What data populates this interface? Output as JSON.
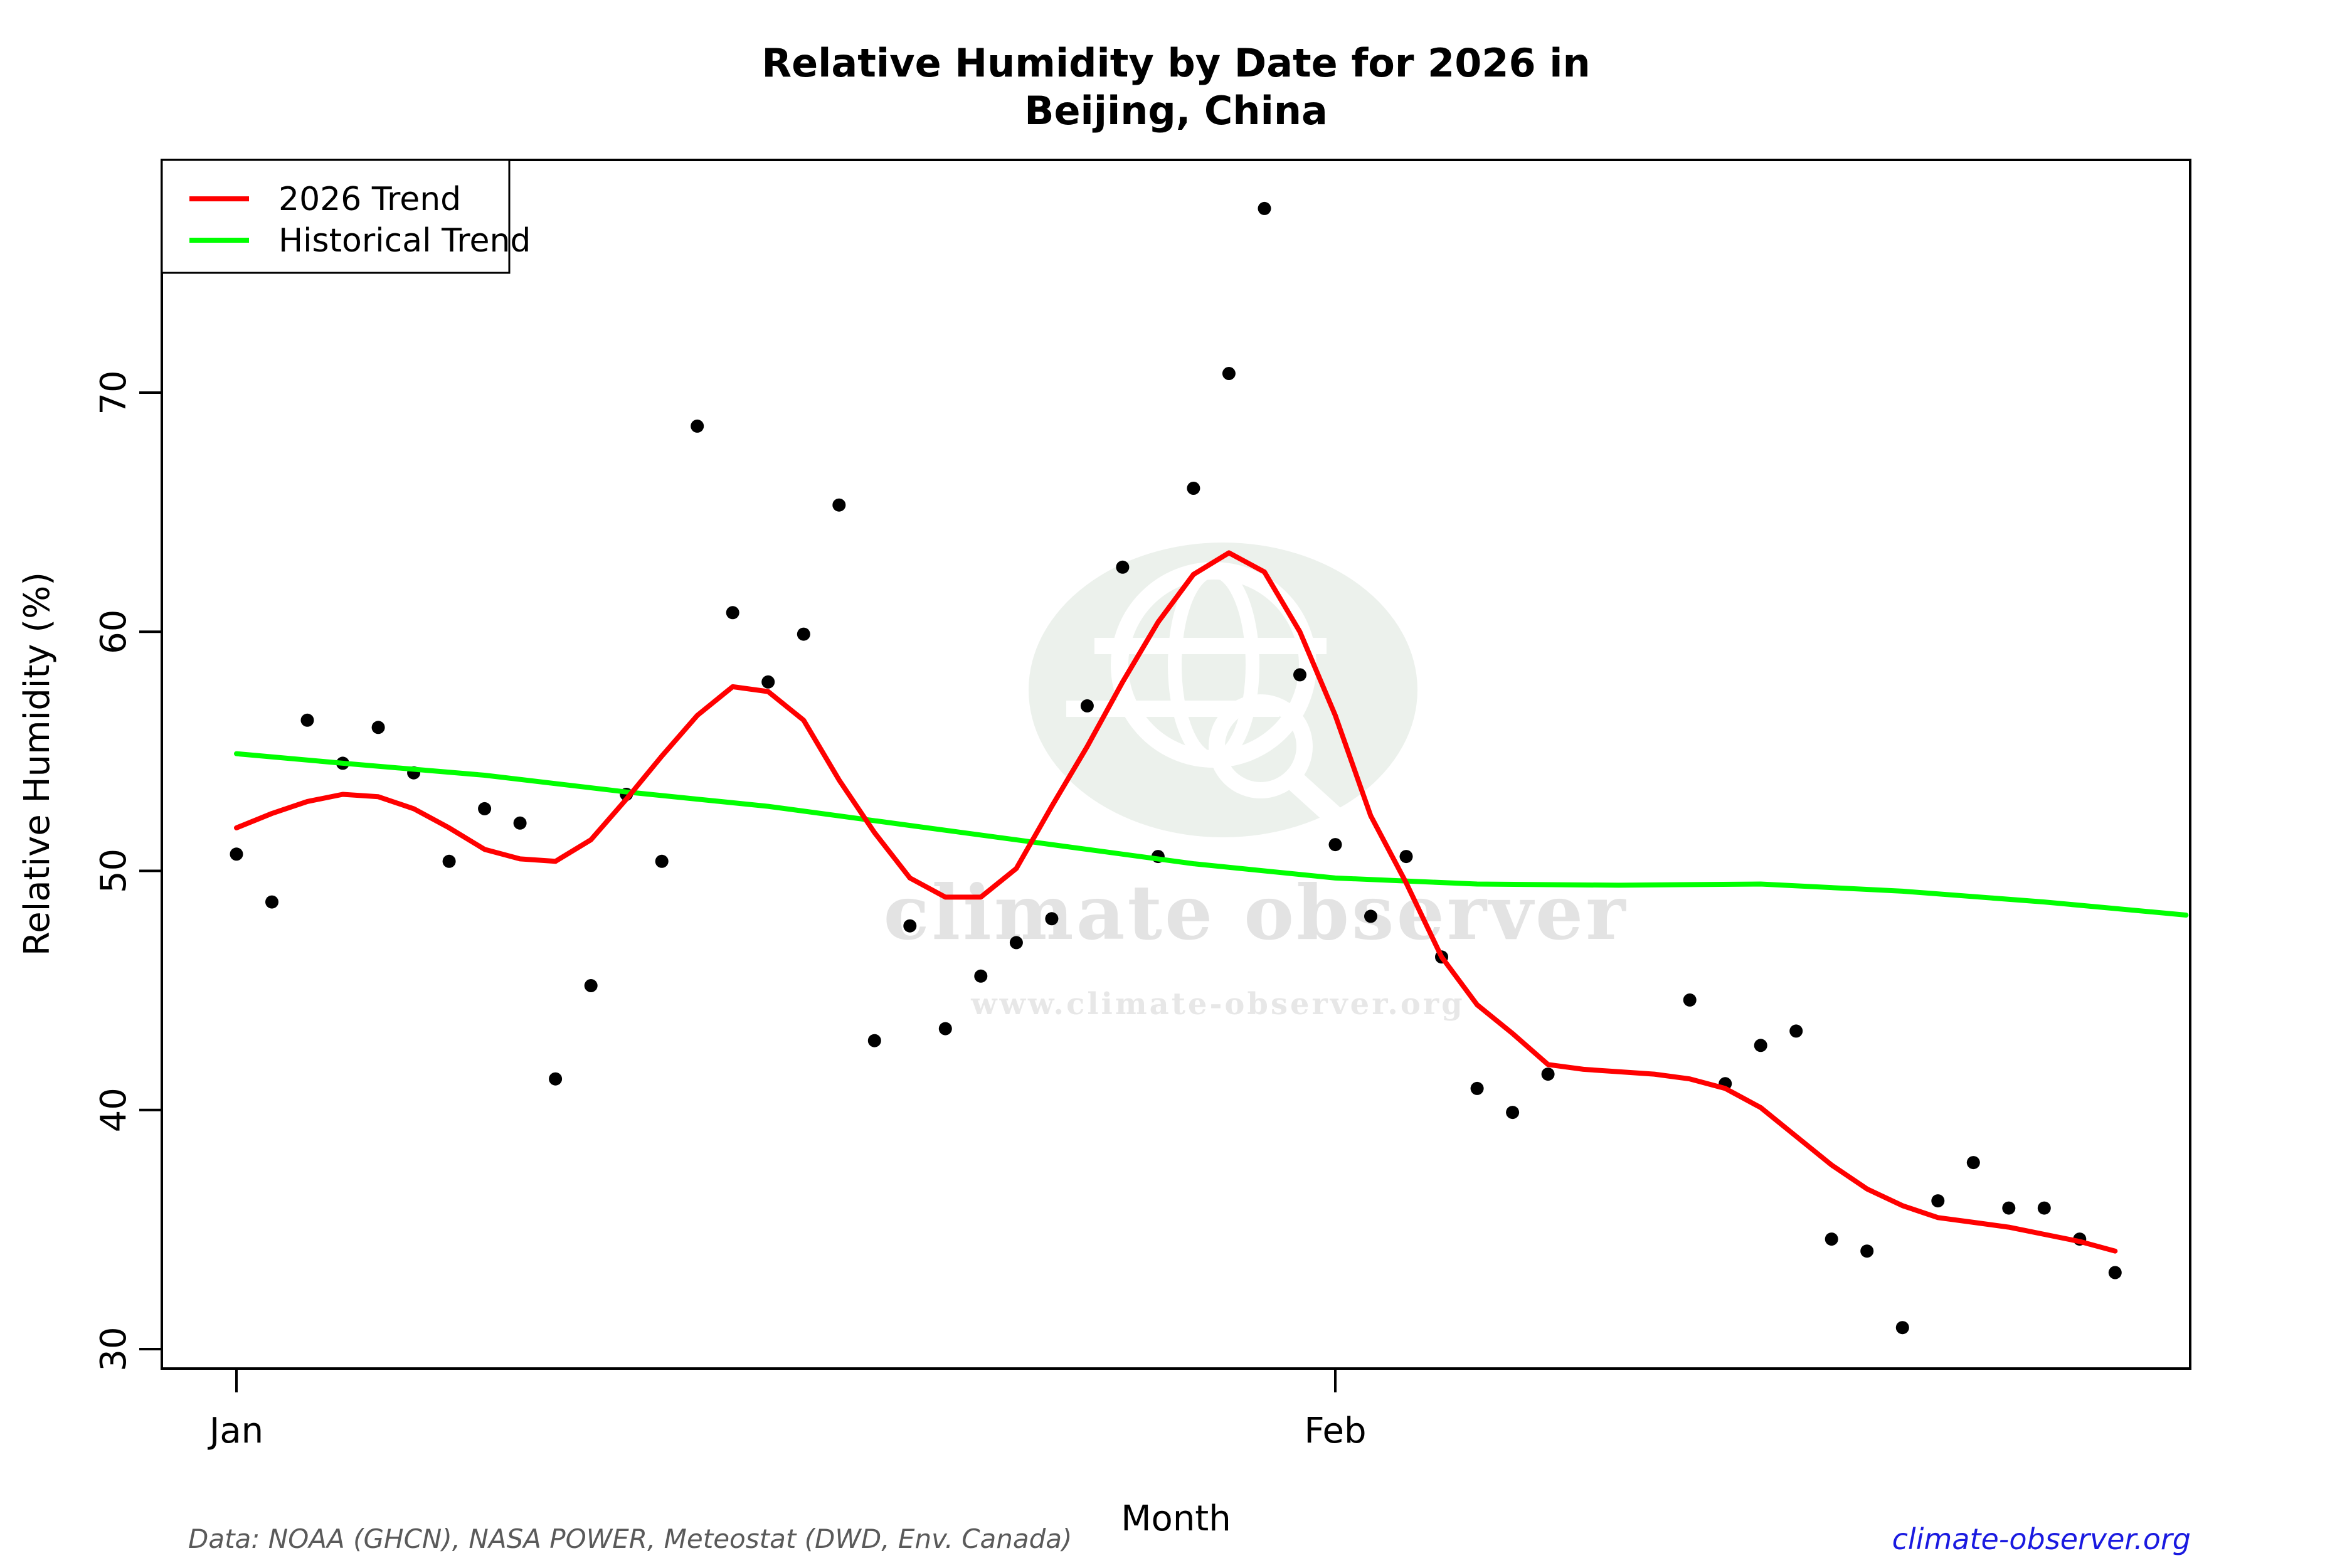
{
  "title": {
    "line1": "Relative Humidity by Date for 2026 in",
    "line2": "Beijing, China"
  },
  "legend": {
    "items": [
      {
        "label": "2026 Trend",
        "color": "#ff0000"
      },
      {
        "label": "Historical Trend",
        "color": "#00ff00"
      }
    ]
  },
  "watermark": {
    "brand": "climate observer",
    "url": "www.climate-observer.org"
  },
  "footer": {
    "source": "Data: NOAA (GHCN), NASA POWER, Meteostat (DWD, Env. Canada)",
    "link": "climate-observer.org"
  },
  "chart_data": {
    "type": "scatter",
    "title": "Relative Humidity by Date for 2026 in Beijing, China",
    "xlabel": "Month",
    "ylabel": "Relative Humidity (%)",
    "x_unit": "day_index (1 = Jan 1, 2026)",
    "x_ticks": [
      {
        "label": "Jan",
        "day": 1
      },
      {
        "label": "Feb",
        "day": 32
      }
    ],
    "y_ticks": [
      30,
      40,
      50,
      60,
      70
    ],
    "xlim_days": [
      -1.1,
      56.1
    ],
    "ylim": [
      29.2,
      79.7
    ],
    "grid": false,
    "legend_position": "top-left",
    "points_color": "#000000",
    "observations": [
      [
        1,
        50.7
      ],
      [
        2,
        48.7
      ],
      [
        3,
        56.3
      ],
      [
        4,
        54.5
      ],
      [
        5,
        56.0
      ],
      [
        6,
        54.1
      ],
      [
        7,
        50.4
      ],
      [
        8,
        52.6
      ],
      [
        9,
        52.0
      ],
      [
        10,
        41.3
      ],
      [
        11,
        45.2
      ],
      [
        12,
        53.2
      ],
      [
        13,
        50.4
      ],
      [
        14,
        68.6
      ],
      [
        15,
        60.8
      ],
      [
        16,
        57.9
      ],
      [
        17,
        59.9
      ],
      [
        18,
        65.3
      ],
      [
        19,
        42.9
      ],
      [
        20,
        47.7
      ],
      [
        21,
        43.4
      ],
      [
        22,
        45.6
      ],
      [
        23,
        47.0
      ],
      [
        24,
        48.0
      ],
      [
        25,
        56.9
      ],
      [
        26,
        62.7
      ],
      [
        27,
        50.6
      ],
      [
        28,
        66.0
      ],
      [
        29,
        70.8
      ],
      [
        30,
        77.7
      ],
      [
        31,
        58.2
      ],
      [
        32,
        51.1
      ],
      [
        33,
        48.1
      ],
      [
        34,
        50.6
      ],
      [
        35,
        46.4
      ],
      [
        36,
        40.9
      ],
      [
        37,
        39.9
      ],
      [
        38,
        41.5
      ],
      [
        42,
        44.6
      ],
      [
        43,
        41.1
      ],
      [
        44,
        42.7
      ],
      [
        45,
        43.3
      ],
      [
        46,
        34.6
      ],
      [
        47,
        34.1
      ],
      [
        48,
        30.9
      ],
      [
        49,
        36.2
      ],
      [
        50,
        37.8
      ],
      [
        51,
        35.9
      ],
      [
        52,
        35.9
      ],
      [
        53,
        34.6
      ],
      [
        54,
        33.2
      ]
    ],
    "series": [
      {
        "name": "2026 Trend",
        "color": "#ff0000",
        "width": 8,
        "points": [
          [
            1,
            51.8
          ],
          [
            2,
            52.4
          ],
          [
            3,
            52.9
          ],
          [
            4,
            53.2
          ],
          [
            5,
            53.1
          ],
          [
            6,
            52.6
          ],
          [
            7,
            51.8
          ],
          [
            8,
            50.9
          ],
          [
            9,
            50.5
          ],
          [
            10,
            50.4
          ],
          [
            11,
            51.3
          ],
          [
            12,
            53.0
          ],
          [
            13,
            54.8
          ],
          [
            14,
            56.5
          ],
          [
            15,
            57.7
          ],
          [
            16,
            57.5
          ],
          [
            17,
            56.3
          ],
          [
            18,
            53.8
          ],
          [
            19,
            51.6
          ],
          [
            20,
            49.7
          ],
          [
            21,
            48.9
          ],
          [
            22,
            48.9
          ],
          [
            23,
            50.1
          ],
          [
            24,
            52.7
          ],
          [
            25,
            55.2
          ],
          [
            26,
            57.9
          ],
          [
            27,
            60.4
          ],
          [
            28,
            62.4
          ],
          [
            29,
            63.3
          ],
          [
            30,
            62.5
          ],
          [
            31,
            60.0
          ],
          [
            32,
            56.5
          ],
          [
            33,
            52.3
          ],
          [
            34,
            49.5
          ],
          [
            35,
            46.4
          ],
          [
            36,
            44.4
          ],
          [
            37,
            43.2
          ],
          [
            38,
            41.9
          ],
          [
            39,
            41.7
          ],
          [
            40,
            41.6
          ],
          [
            41,
            41.5
          ],
          [
            42,
            41.3
          ],
          [
            43,
            40.9
          ],
          [
            44,
            40.1
          ],
          [
            45,
            38.9
          ],
          [
            46,
            37.7
          ],
          [
            47,
            36.7
          ],
          [
            48,
            36.0
          ],
          [
            49,
            35.5
          ],
          [
            50,
            35.3
          ],
          [
            51,
            35.1
          ],
          [
            52,
            34.8
          ],
          [
            53,
            34.5
          ],
          [
            54,
            34.1
          ]
        ]
      },
      {
        "name": "Historical Trend",
        "color": "#00ff00",
        "width": 8,
        "points": [
          [
            1,
            54.9
          ],
          [
            4,
            54.5
          ],
          [
            8,
            54.0
          ],
          [
            12,
            53.3
          ],
          [
            16,
            52.7
          ],
          [
            20,
            51.9
          ],
          [
            24,
            51.1
          ],
          [
            28,
            50.3
          ],
          [
            32,
            49.7
          ],
          [
            36,
            49.45
          ],
          [
            40,
            49.4
          ],
          [
            44,
            49.45
          ],
          [
            48,
            49.15
          ],
          [
            52,
            48.7
          ],
          [
            56,
            48.15
          ]
        ]
      }
    ]
  }
}
